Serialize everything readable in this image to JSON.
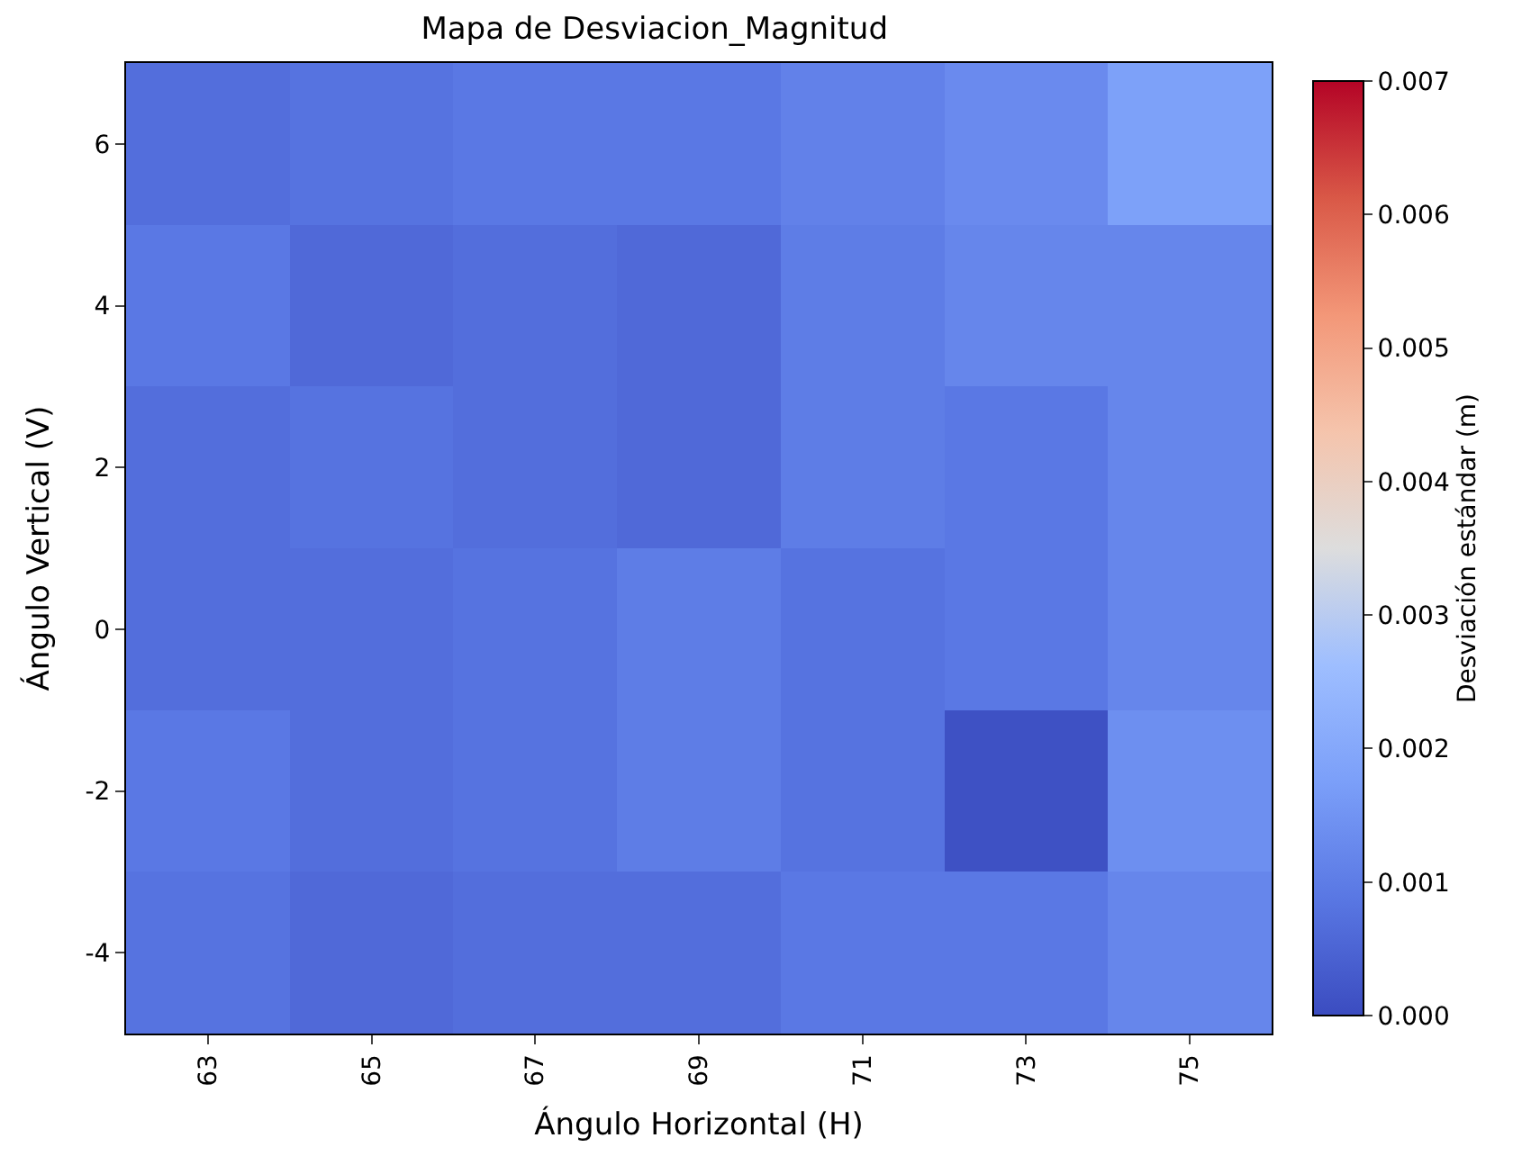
{
  "chart_data": {
    "type": "heatmap",
    "title": "Mapa de Desviacion_Magnitud",
    "xlabel": "Ángulo Horizontal (H)",
    "ylabel": "Ángulo Vertical (V)",
    "clabel": "Desviación estándar (m)",
    "categories": [
      "63",
      "65",
      "67",
      "69",
      "71",
      "73",
      "75"
    ],
    "y_categories": [
      "6",
      "4",
      "2",
      "0",
      "-2",
      "-4"
    ],
    "cells": [
      [
        0.0007,
        0.0008,
        0.0009,
        0.0009,
        0.0011,
        0.0013,
        0.0018
      ],
      [
        0.0009,
        0.0006,
        0.0007,
        0.0006,
        0.001,
        0.0012,
        0.0012
      ],
      [
        0.0007,
        0.0008,
        0.0007,
        0.0006,
        0.001,
        0.0009,
        0.0012
      ],
      [
        0.0007,
        0.0007,
        0.0008,
        0.001,
        0.0008,
        0.0009,
        0.0012
      ],
      [
        0.0009,
        0.0007,
        0.0008,
        0.001,
        0.0008,
        0.0001,
        0.0014
      ],
      [
        0.0008,
        0.0006,
        0.0007,
        0.0007,
        0.0009,
        0.0009,
        0.0012
      ]
    ],
    "clim": [
      0,
      0.007
    ],
    "cticks": [
      {
        "value": 0,
        "label": "0.000"
      },
      {
        "value": 0.001,
        "label": "0.001"
      },
      {
        "value": 0.002,
        "label": "0.002"
      },
      {
        "value": 0.003,
        "label": "0.003"
      },
      {
        "value": 0.004,
        "label": "0.004"
      },
      {
        "value": 0.005,
        "label": "0.005"
      },
      {
        "value": 0.006,
        "label": "0.006"
      },
      {
        "value": 0.007,
        "label": "0.007"
      }
    ]
  }
}
